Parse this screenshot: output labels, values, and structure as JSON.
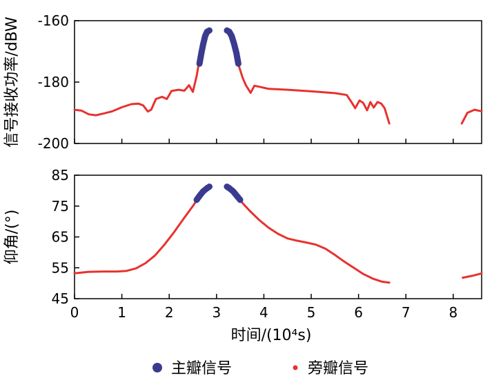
{
  "chart_data": [
    {
      "type": "line",
      "ylabel": "信号接收功率/dBW",
      "xlim": [
        0,
        8.6
      ],
      "ylim": [
        -200,
        -160
      ],
      "yticks": [
        -200,
        -180,
        -160
      ],
      "series": [
        {
          "name": "旁瓣信号",
          "color": "#e8312f",
          "segments": [
            [
              [
                0,
                -189
              ],
              [
                0.15,
                -189.3
              ],
              [
                0.3,
                -190.5
              ],
              [
                0.45,
                -190.8
              ],
              [
                0.6,
                -190.3
              ],
              [
                0.8,
                -189.5
              ],
              [
                1.0,
                -188.2
              ],
              [
                1.2,
                -187.2
              ],
              [
                1.35,
                -187.0
              ],
              [
                1.45,
                -187.6
              ],
              [
                1.55,
                -189.6
              ],
              [
                1.62,
                -189.0
              ],
              [
                1.72,
                -185.5
              ],
              [
                1.85,
                -184.8
              ],
              [
                1.95,
                -185.5
              ],
              [
                2.05,
                -182.9
              ],
              [
                2.2,
                -182.5
              ],
              [
                2.32,
                -182.8
              ],
              [
                2.42,
                -181.0
              ],
              [
                2.5,
                -183.2
              ],
              [
                2.58,
                -178.0
              ],
              [
                2.62,
                -174.5
              ],
              [
                2.64,
                -173.8
              ]
            ],
            [
              [
                3.46,
                -174.2
              ],
              [
                3.55,
                -178.5
              ],
              [
                3.62,
                -181.0
              ],
              [
                3.72,
                -183.5
              ],
              [
                3.8,
                -181.2
              ],
              [
                3.9,
                -181.5
              ],
              [
                4.1,
                -182.2
              ],
              [
                4.5,
                -182.5
              ],
              [
                5.0,
                -183.0
              ],
              [
                5.5,
                -183.6
              ],
              [
                5.75,
                -184.2
              ],
              [
                5.85,
                -186.5
              ],
              [
                5.93,
                -188.5
              ],
              [
                6.02,
                -186.0
              ],
              [
                6.1,
                -186.8
              ],
              [
                6.18,
                -189.2
              ],
              [
                6.25,
                -186.5
              ],
              [
                6.32,
                -188.3
              ],
              [
                6.4,
                -186.5
              ],
              [
                6.48,
                -187.0
              ],
              [
                6.55,
                -188.5
              ],
              [
                6.65,
                -193.5
              ]
            ],
            [
              [
                8.18,
                -193.5
              ],
              [
                8.3,
                -190.0
              ],
              [
                8.45,
                -189.0
              ],
              [
                8.6,
                -189.5
              ]
            ]
          ]
        },
        {
          "name": "主瓣信号",
          "color": "#3a3b8f",
          "segments": [
            [
              [
                2.64,
                -174.0
              ],
              [
                2.68,
                -170.5
              ],
              [
                2.72,
                -167.5
              ],
              [
                2.76,
                -165.0
              ],
              [
                2.8,
                -163.6
              ],
              [
                2.85,
                -163.2
              ]
            ],
            [
              [
                3.22,
                -163.2
              ],
              [
                3.27,
                -163.6
              ],
              [
                3.32,
                -165.0
              ],
              [
                3.37,
                -167.5
              ],
              [
                3.42,
                -170.5
              ],
              [
                3.46,
                -174.0
              ]
            ]
          ]
        }
      ]
    },
    {
      "type": "line",
      "xlabel": "时间/(10⁴s)",
      "ylabel": "仰角/(°)",
      "xlim": [
        0,
        8.6
      ],
      "ylim": [
        45,
        85
      ],
      "xticks": [
        "0",
        "1",
        "2",
        "3",
        "4",
        "5",
        "6",
        "7",
        "8"
      ],
      "yticks": [
        45,
        55,
        65,
        75,
        85
      ],
      "series": [
        {
          "name": "旁瓣信号",
          "color": "#e8312f",
          "segments": [
            [
              [
                0,
                53.2
              ],
              [
                0.3,
                53.7
              ],
              [
                0.6,
                53.8
              ],
              [
                0.9,
                53.8
              ],
              [
                1.1,
                54.0
              ],
              [
                1.3,
                54.8
              ],
              [
                1.5,
                56.5
              ],
              [
                1.7,
                59.0
              ],
              [
                1.9,
                62.5
              ],
              [
                2.1,
                66.5
              ],
              [
                2.3,
                70.8
              ],
              [
                2.5,
                75.0
              ],
              [
                2.58,
                76.8
              ]
            ],
            [
              [
                3.5,
                76.8
              ],
              [
                3.7,
                73.5
              ],
              [
                3.9,
                70.5
              ],
              [
                4.1,
                68.0
              ],
              [
                4.3,
                66.0
              ],
              [
                4.5,
                64.5
              ],
              [
                4.7,
                63.8
              ],
              [
                4.9,
                63.2
              ],
              [
                5.1,
                62.5
              ],
              [
                5.3,
                61.2
              ],
              [
                5.5,
                59.2
              ],
              [
                5.7,
                57.0
              ],
              [
                5.9,
                55.0
              ],
              [
                6.1,
                53.0
              ],
              [
                6.3,
                51.5
              ],
              [
                6.5,
                50.5
              ],
              [
                6.65,
                50.2
              ]
            ],
            [
              [
                8.2,
                51.8
              ],
              [
                8.4,
                52.4
              ],
              [
                8.6,
                53.2
              ]
            ]
          ]
        },
        {
          "name": "主瓣信号",
          "color": "#3a3b8f",
          "segments": [
            [
              [
                2.58,
                77.0
              ],
              [
                2.65,
                78.5
              ],
              [
                2.72,
                79.8
              ],
              [
                2.8,
                80.8
              ],
              [
                2.85,
                81.3
              ]
            ],
            [
              [
                3.22,
                81.3
              ],
              [
                3.27,
                80.8
              ],
              [
                3.35,
                79.8
              ],
              [
                3.42,
                78.5
              ],
              [
                3.5,
                77.0
              ]
            ]
          ]
        }
      ]
    }
  ],
  "legend": {
    "placement": "bottom",
    "items": [
      {
        "label": "主瓣信号",
        "color": "#3a3b8f"
      },
      {
        "label": "旁瓣信号",
        "color": "#e8312f"
      }
    ]
  }
}
